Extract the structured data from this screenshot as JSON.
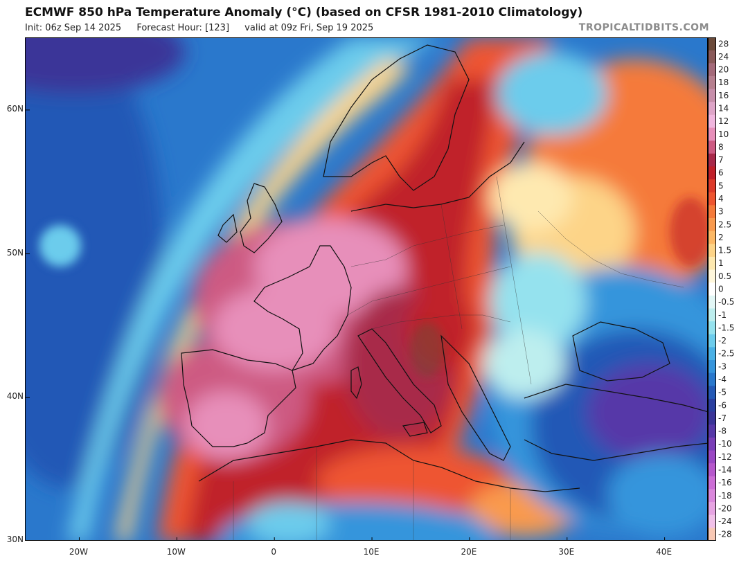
{
  "header": {
    "title": "ECMWF 850 hPa Temperature Anomaly (°C) (based on CFSR 1981-2010 Climatology)",
    "init": "Init: 06z Sep 14 2025",
    "forecast_hour": "Forecast Hour: [123]",
    "valid": "valid at 09z Fri, Sep 19 2025",
    "credit": "TROPICALTIDBITS.COM"
  },
  "map": {
    "lat_labels": [
      {
        "label": "60N",
        "lat": 60
      },
      {
        "label": "50N",
        "lat": 50
      },
      {
        "label": "40N",
        "lat": 40
      },
      {
        "label": "30N",
        "lat": 30
      }
    ],
    "lon_labels": [
      {
        "label": "20W",
        "lon": -20
      },
      {
        "label": "10W",
        "lon": -10
      },
      {
        "label": "0",
        "lon": 0
      },
      {
        "label": "10E",
        "lon": 10
      },
      {
        "label": "20E",
        "lon": 20
      },
      {
        "label": "30E",
        "lon": 30
      },
      {
        "label": "40E",
        "lon": 40
      }
    ],
    "lon_range": [
      -25.5,
      44.5
    ],
    "lat_range": [
      30,
      65
    ]
  },
  "colorbar": {
    "levels": [
      {
        "label": "28",
        "color": "#6b4a3a"
      },
      {
        "label": "24",
        "color": "#8a5a5a"
      },
      {
        "label": "20",
        "color": "#a46a7a"
      },
      {
        "label": "18",
        "color": "#b67f8f"
      },
      {
        "label": "16",
        "color": "#c78fab"
      },
      {
        "label": "14",
        "color": "#dea5c8"
      },
      {
        "label": "12",
        "color": "#f0b6de"
      },
      {
        "label": "10",
        "color": "#e78fba"
      },
      {
        "label": "8",
        "color": "#cd5a82"
      },
      {
        "label": "7",
        "color": "#a8294a"
      },
      {
        "label": "6",
        "color": "#c0202a"
      },
      {
        "label": "5",
        "color": "#dd3a2a"
      },
      {
        "label": "4",
        "color": "#ee5530"
      },
      {
        "label": "3",
        "color": "#f57a3a"
      },
      {
        "label": "2.5",
        "color": "#f99a4e"
      },
      {
        "label": "2",
        "color": "#fcb865"
      },
      {
        "label": "1.5",
        "color": "#fdd488"
      },
      {
        "label": "1",
        "color": "#fee9b0"
      },
      {
        "label": "0.5",
        "color": "#fff7dc"
      },
      {
        "label": "0",
        "color": "#ffffff"
      },
      {
        "label": "-0.5",
        "color": "#e2f7f6"
      },
      {
        "label": "-1",
        "color": "#bdeeee"
      },
      {
        "label": "-1.5",
        "color": "#95e2ee"
      },
      {
        "label": "-2",
        "color": "#6cccec"
      },
      {
        "label": "-2.5",
        "color": "#4ab1e6"
      },
      {
        "label": "-3",
        "color": "#3695dc"
      },
      {
        "label": "-4",
        "color": "#2a78cc"
      },
      {
        "label": "-5",
        "color": "#2459b6"
      },
      {
        "label": "-6",
        "color": "#2a3fa0"
      },
      {
        "label": "-7",
        "color": "#3a3498"
      },
      {
        "label": "-8",
        "color": "#5638a8"
      },
      {
        "label": "-10",
        "color": "#7a3eb8"
      },
      {
        "label": "-12",
        "color": "#9a48c4"
      },
      {
        "label": "-14",
        "color": "#b658cc"
      },
      {
        "label": "-16",
        "color": "#cc6ed6"
      },
      {
        "label": "-18",
        "color": "#da88dc"
      },
      {
        "label": "-20",
        "color": "#e6a4e2"
      },
      {
        "label": "-24",
        "color": "#f0c0e8"
      },
      {
        "label": "-28",
        "color": "#f8c8b4"
      }
    ]
  }
}
